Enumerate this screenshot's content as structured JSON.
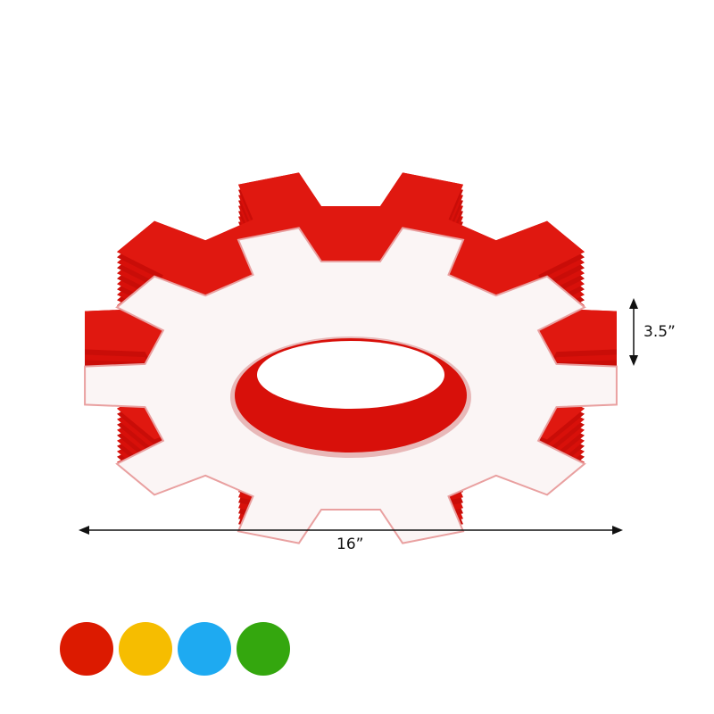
{
  "product": {
    "body_color": "#d8100a",
    "face_color": "#fbf5f5"
  },
  "dimensions": {
    "width_label": "16”",
    "height_label": "3.5”"
  },
  "color_options": [
    {
      "name": "red",
      "color": "#dc1a00"
    },
    {
      "name": "yellow",
      "color": "#f6bd00"
    },
    {
      "name": "blue",
      "color": "#1eaaf1"
    },
    {
      "name": "green",
      "color": "#34a70e"
    }
  ]
}
